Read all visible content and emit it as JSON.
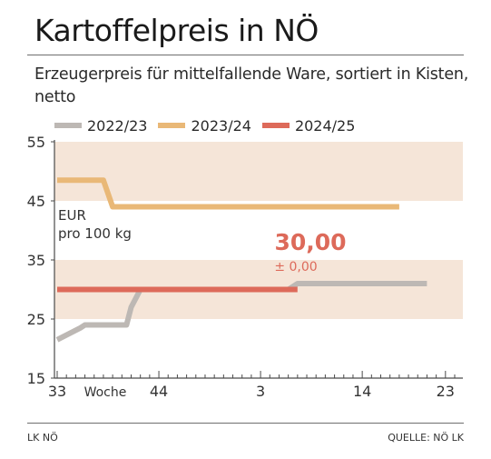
{
  "title": "Kartoffelpreis in NÖ",
  "subtitle": "Erzeugerpreis für mittelfallende Ware, sortiert in Kisten, netto",
  "footer": {
    "left": "LK NÖ",
    "right": "QUELLE: NÖ LK"
  },
  "colors": {
    "band": "#f5e5d8",
    "s1": "#bdb8b4",
    "s2": "#e9b877",
    "s3": "#dd6a5a",
    "highlight": "#dd6a5a",
    "axis": "#4a4a4a"
  },
  "chart_data": {
    "type": "line",
    "ylim": [
      15,
      55
    ],
    "yticks": [
      "55",
      "45",
      "35",
      "25",
      "15"
    ],
    "xlim": [
      0,
      43
    ],
    "xticks": [
      {
        "x": 0,
        "label": "33"
      },
      {
        "x": 11,
        "label": "44"
      },
      {
        "x": 22,
        "label": "3"
      },
      {
        "x": 33,
        "label": "14"
      },
      {
        "x": 42,
        "label": "23"
      }
    ],
    "xlabel": "Woche",
    "ylabel": "EUR\npro 100 kg",
    "ylabel_lines": [
      "EUR",
      "pro 100 kg"
    ],
    "grid": false,
    "bands": [
      [
        45,
        55
      ],
      [
        25,
        35
      ]
    ],
    "series": [
      {
        "name": "2022/23",
        "color": "#bdb8b4",
        "points": [
          [
            0,
            21.5
          ],
          [
            2.5,
            23.5
          ],
          [
            3,
            24
          ],
          [
            7,
            24
          ],
          [
            7.5,
            24
          ],
          [
            8,
            27
          ],
          [
            9,
            30
          ],
          [
            25,
            30
          ],
          [
            26,
            31
          ],
          [
            40,
            31
          ]
        ]
      },
      {
        "name": "2023/24",
        "color": "#e9b877",
        "points": [
          [
            0,
            48.5
          ],
          [
            5,
            48.5
          ],
          [
            6,
            44
          ],
          [
            37,
            44
          ]
        ]
      },
      {
        "name": "2024/25",
        "color": "#dd6a5a",
        "points": [
          [
            0,
            30
          ],
          [
            26,
            30
          ]
        ]
      }
    ],
    "annotation": {
      "value": "30,00",
      "change": "± 0,00"
    }
  }
}
